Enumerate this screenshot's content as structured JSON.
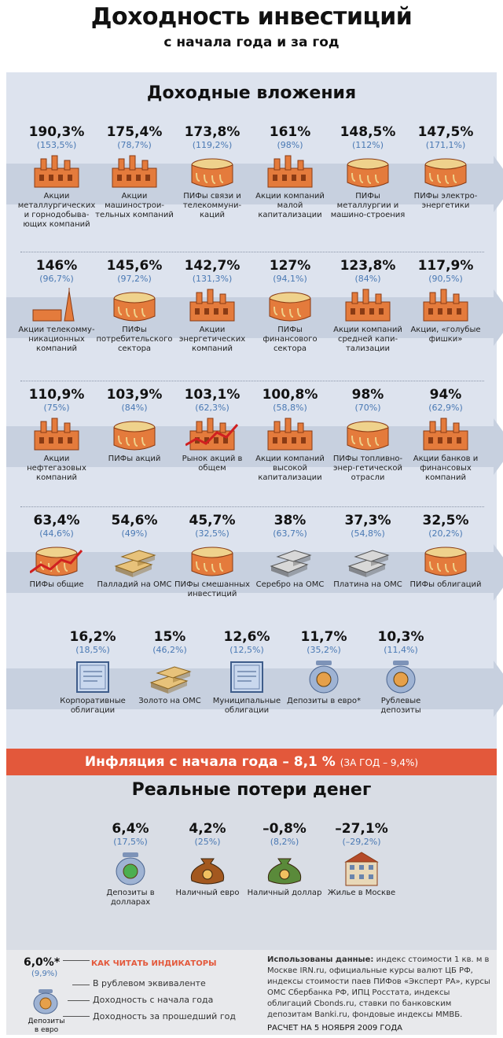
{
  "title": "Доходность инвестиций",
  "subtitle": "с начала года и за год",
  "section1_title": "Доходные вложения",
  "rows": [
    [
      {
        "pct": "190,3%",
        "year": "(153,5%)",
        "label": "Акции металлургических и горнодобыва-ющих компаний",
        "icon": "factory-icon"
      },
      {
        "pct": "175,4%",
        "year": "(78,7%)",
        "label": "Акции машинострои-тельных компаний",
        "icon": "factory-icon"
      },
      {
        "pct": "173,8%",
        "year": "(119,2%)",
        "label": "ПИФы связи и телекоммуни-каций",
        "icon": "cake-icon"
      },
      {
        "pct": "161%",
        "year": "(98%)",
        "label": "Акции компаний малой капитализации",
        "icon": "factory-icon"
      },
      {
        "pct": "148,5%",
        "year": "(112%)",
        "label": "ПИФы металлургии и машино-строения",
        "icon": "cake-icon"
      },
      {
        "pct": "147,5%",
        "year": "(171,1%)",
        "label": "ПИФы электро-энергетики",
        "icon": "cake-icon"
      }
    ],
    [
      {
        "pct": "146%",
        "year": "(96,7%)",
        "label": "Акции телекомму-никационных компаний",
        "icon": "tower-icon"
      },
      {
        "pct": "145,6%",
        "year": "(97,2%)",
        "label": "ПИФы потребительского сектора",
        "icon": "cake-icon"
      },
      {
        "pct": "142,7%",
        "year": "(131,3%)",
        "label": "Акции энергетических компаний",
        "icon": "factory-icon"
      },
      {
        "pct": "127%",
        "year": "(94,1%)",
        "label": "ПИФы финансового сектора",
        "icon": "cake-icon"
      },
      {
        "pct": "123,8%",
        "year": "(84%)",
        "label": "Акции компаний средней капи-тализации",
        "icon": "factory-icon"
      },
      {
        "pct": "117,9%",
        "year": "(90,5%)",
        "label": "Акции, «голубые фишки»",
        "icon": "factory-icon"
      }
    ],
    [
      {
        "pct": "110,9%",
        "year": "(75%)",
        "label": "Акции нефтегазовых компаний",
        "icon": "factory-icon"
      },
      {
        "pct": "103,9%",
        "year": "(84%)",
        "label": "ПИФы акций",
        "icon": "cake-icon"
      },
      {
        "pct": "103,1%",
        "year": "(62,3%)",
        "label": "Рынок акций в общем",
        "icon": "factory-chart-icon"
      },
      {
        "pct": "100,8%",
        "year": "(58,8%)",
        "label": "Акции компаний высокой капитализации",
        "icon": "factory-icon"
      },
      {
        "pct": "98%",
        "year": "(70%)",
        "label": "ПИФы топливно-энер-гетической отрасли",
        "icon": "cake-icon"
      },
      {
        "pct": "94%",
        "year": "(62,9%)",
        "label": "Акции банков и финансовых компаний",
        "icon": "factory-icon"
      }
    ],
    [
      {
        "pct": "63,4%",
        "year": "(44,6%)",
        "label": "ПИФы общие",
        "icon": "cake-chart-icon"
      },
      {
        "pct": "54,6%",
        "year": "(49%)",
        "label": "Палладий на ОМС",
        "icon": "gold-bars-icon"
      },
      {
        "pct": "45,7%",
        "year": "(32,5%)",
        "label": "ПИФы смешанных инвестиций",
        "icon": "cake-icon"
      },
      {
        "pct": "38%",
        "year": "(63,7%)",
        "label": "Серебро на ОМС",
        "icon": "silver-bars-icon"
      },
      {
        "pct": "37,3%",
        "year": "(54,8%)",
        "label": "Платина на ОМС",
        "icon": "silver-bars-icon"
      },
      {
        "pct": "32,5%",
        "year": "(20,2%)",
        "label": "ПИФы облигаций",
        "icon": "cake-icon"
      }
    ],
    [
      {
        "pct": "16,2%",
        "year": "(18,5%)",
        "label": "Корпоративные облигации",
        "icon": "bond-icon"
      },
      {
        "pct": "15%",
        "year": "(46,2%)",
        "label": "Золото на ОМС",
        "icon": "gold-bars-icon"
      },
      {
        "pct": "12,6%",
        "year": "(12,5%)",
        "label": "Муниципальные облигации",
        "icon": "bond-icon"
      },
      {
        "pct": "11,7%",
        "year": "(35,2%)",
        "label": "Депозиты в евро*",
        "icon": "jar-euro-icon"
      },
      {
        "pct": "10,3%",
        "year": "(11,4%)",
        "label": "Рублевые депозиты",
        "icon": "jar-ruble-icon"
      }
    ]
  ],
  "inflation": {
    "main": "Инфляция с начала года – 8,1 %",
    "note": "(ЗА ГОД – 9,4%)"
  },
  "section2_title": "Реальные потери денег",
  "losses": [
    {
      "pct": "6,4%",
      "year": "(17,5%)",
      "label": "Депозиты в долларах",
      "icon": "jar-dollar-icon"
    },
    {
      "pct": "4,2%",
      "year": "(25%)",
      "label": "Наличный евро",
      "icon": "bag-euro-icon"
    },
    {
      "pct": "–0,8%",
      "year": "(8,2%)",
      "label": "Наличный доллар",
      "icon": "bag-dollar-icon"
    },
    {
      "pct": "–27,1%",
      "year": "(–29,2%)",
      "label": "Жилье в Москве",
      "icon": "building-icon"
    }
  ],
  "legend": {
    "pct": "6,0%*",
    "year": "(9,9%)",
    "icon_label": "Депозиты в евро",
    "heading": "КАК ЧИТАТЬ ИНДИКАТОРЫ",
    "line1": "В рублевом эквиваленте",
    "line2": "Доходность с начала года",
    "line3": "Доходность за прошедший год"
  },
  "sources_lead": "Использованы данные:",
  "sources": " индекс стоимости 1 кв. м в Москве IRN.ru, официальные курсы валют ЦБ РФ, индексы стоимости паев ПИФов «Эксперт РА», курсы ОМС Сбербанка РФ, ИПЦ Росстата, индексы облигаций Cbonds.ru, ставки по банковским депозитам Banki.ru, фондовые индексы ММВБ.",
  "calc": "РАСЧЕТ НА 5 НОЯБРЯ 2009 ГОДА",
  "colors": {
    "accent": "#e3583b",
    "blue": "#4a79b4",
    "panel": "#dde3ee"
  }
}
